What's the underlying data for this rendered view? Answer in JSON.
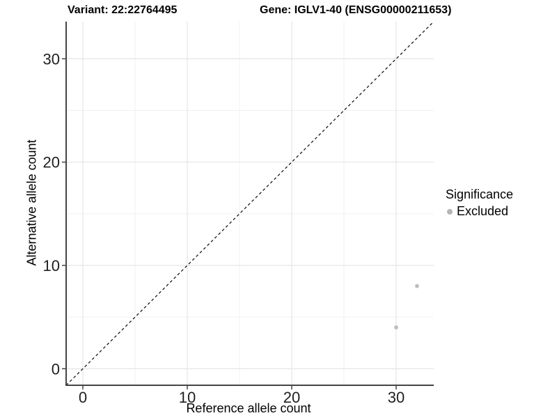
{
  "header": {
    "variant_title": "Variant: 22:22764495",
    "gene_title": "Gene: IGLV1-40 (ENSG00000211653)"
  },
  "chart_data": {
    "type": "scatter",
    "title_left": "Variant: 22:22764495",
    "title_right": "Gene: IGLV1-40 (ENSG00000211653)",
    "xlabel": "Reference allele count",
    "ylabel": "Alternative allele count",
    "xlim": [
      -1.6,
      33.6
    ],
    "ylim": [
      -1.6,
      33.6
    ],
    "x_ticks": [
      0,
      10,
      20,
      30
    ],
    "y_ticks": [
      0,
      10,
      20,
      30
    ],
    "x_minor_ticks": [
      5,
      15,
      25
    ],
    "y_minor_ticks": [
      5,
      15,
      25
    ],
    "grid": "major and minor gridlines, white background",
    "reference_line": {
      "kind": "identity y=x",
      "style": "dashed",
      "color": "#111111"
    },
    "series": [
      {
        "name": "Excluded",
        "color": "#bdbdbd",
        "points": [
          [
            30,
            4
          ],
          [
            32,
            8
          ]
        ]
      }
    ],
    "legend": {
      "title": "Significance",
      "position": "right",
      "items": [
        {
          "label": "Excluded",
          "color": "#b5b5b5"
        }
      ]
    }
  },
  "colors": {
    "background": "#ffffff",
    "grid_major": "#e5e5e5",
    "grid_minor": "#f0f0f0",
    "axis_line": "#444444",
    "tick_text": "#1f1f1f",
    "label_text": "#000000"
  }
}
